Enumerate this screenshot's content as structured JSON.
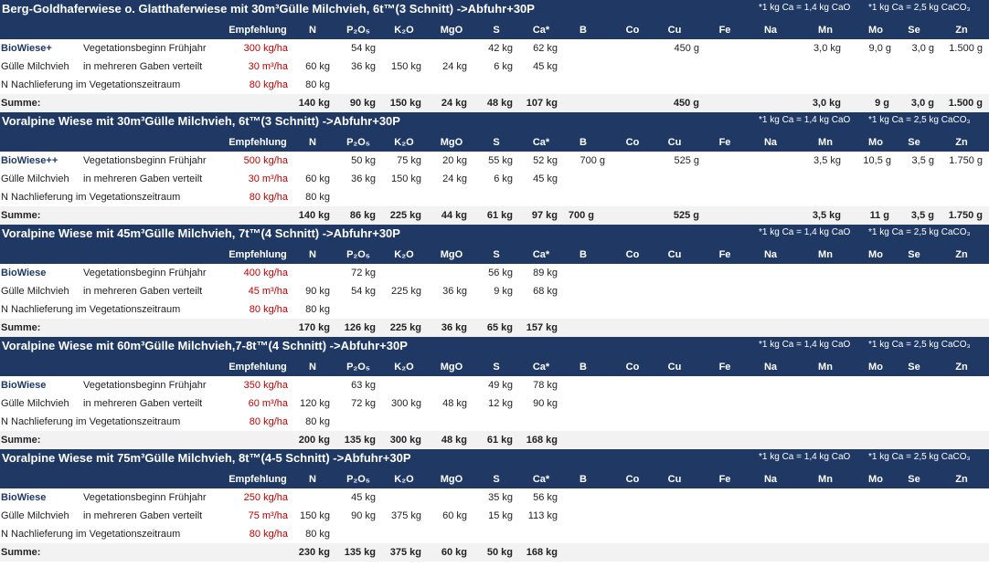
{
  "notes": [
    "*1 kg Ca = 1,4 kg CaO",
    "*1 kg Ca = 2,5 kg CaCO₃"
  ],
  "headers": [
    "Empfehlung",
    "N",
    "P₂O₅",
    "K₂O",
    "MgO",
    "S",
    "Ca*",
    "B",
    "Co",
    "Cu",
    "Fe",
    "Na",
    "Mn",
    "Mo",
    "Se",
    "Zn"
  ],
  "sum_label": "Summe:",
  "blocks": [
    {
      "title": "Berg-Goldhaferwiese o. Glatthaferwiese mit 30m³Gülle Milchvieh, 6t™(3 Schnitt) ->Abfuhr+30P",
      "rows": [
        {
          "a": "BioWiese+",
          "b": "Vegetationsbeginn Frühjahr",
          "e": "300 kg/ha",
          "N": "",
          "P": "54 kg",
          "K": "",
          "Mg": "",
          "S": "42 kg",
          "Ca": "62 kg",
          "B": "",
          "Cu": "450 g",
          "Mn": "3,0 kg",
          "Mo": "9,0 g",
          "Se": "3,0 g",
          "Zn": "1.500 g"
        },
        {
          "a": "Gülle Milchvieh",
          "b": "in mehreren Gaben verteilt",
          "e": "30 m³/ha",
          "N": "60 kg",
          "P": "36 kg",
          "K": "150 kg",
          "Mg": "24 kg",
          "S": "6 kg",
          "Ca": "45 kg"
        },
        {
          "a": "N Nachlieferung im Vegetationszeitraum",
          "b": "",
          "e": "80 kg/ha",
          "N": "80 kg"
        }
      ],
      "sum": {
        "N": "140 kg",
        "P": "90 kg",
        "K": "150 kg",
        "Mg": "24 kg",
        "S": "48 kg",
        "Ca": "107 kg",
        "B": "",
        "Cu": "450 g",
        "Mn": "3,0 kg",
        "Mo": "9 g",
        "Se": "3,0 g",
        "Zn": "1.500 g"
      }
    },
    {
      "title": "Voralpine Wiese mit 30m³Gülle Milchvieh, 6t™(3 Schnitt) ->Abfuhr+30P",
      "rows": [
        {
          "a": "BioWiese++",
          "b": "Vegetationsbeginn Frühjahr",
          "e": "500 kg/ha",
          "N": "",
          "P": "50 kg",
          "K": "75 kg",
          "Mg": "20 kg",
          "S": "55 kg",
          "Ca": "52 kg",
          "B": "700 g",
          "Cu": "525 g",
          "Mn": "3,5 kg",
          "Mo": "10,5 g",
          "Se": "3,5 g",
          "Zn": "1.750 g"
        },
        {
          "a": "Gülle Milchvieh",
          "b": "in mehreren Gaben verteilt",
          "e": "30 m³/ha",
          "N": "60 kg",
          "P": "36 kg",
          "K": "150 kg",
          "Mg": "24 kg",
          "S": "6 kg",
          "Ca": "45 kg"
        },
        {
          "a": "N Nachlieferung im Vegetationszeitraum",
          "b": "",
          "e": "80 kg/ha",
          "N": "80 kg"
        }
      ],
      "sum": {
        "N": "140 kg",
        "P": "86 kg",
        "K": "225 kg",
        "Mg": "44 kg",
        "S": "61 kg",
        "Ca": "97 kg",
        "B": "700 g",
        "Cu": "525 g",
        "Mn": "3,5 kg",
        "Mo": "11 g",
        "Se": "3,5 g",
        "Zn": "1.750 g"
      }
    },
    {
      "title": "Voralpine Wiese mit 45m³Gülle Milchvieh, 7t™(4 Schnitt) ->Abfuhr+30P",
      "rows": [
        {
          "a": "BioWiese",
          "b": "Vegetationsbeginn Frühjahr",
          "e": "400 kg/ha",
          "N": "",
          "P": "72 kg",
          "K": "",
          "Mg": "",
          "S": "56 kg",
          "Ca": "89 kg"
        },
        {
          "a": "Gülle Milchvieh",
          "b": "in mehreren Gaben verteilt",
          "e": "45 m³/ha",
          "N": "90 kg",
          "P": "54 kg",
          "K": "225 kg",
          "Mg": "36 kg",
          "S": "9 kg",
          "Ca": "68 kg"
        },
        {
          "a": "N Nachlieferung im Vegetationszeitraum",
          "b": "",
          "e": "80 kg/ha",
          "N": "80 kg"
        }
      ],
      "sum": {
        "N": "170 kg",
        "P": "126 kg",
        "K": "225 kg",
        "Mg": "36 kg",
        "S": "65 kg",
        "Ca": "157 kg"
      }
    },
    {
      "title": "Voralpine Wiese mit 60m³Gülle Milchvieh,7-8t™(4 Schnitt) ->Abfuhr+30P",
      "rows": [
        {
          "a": "BioWiese",
          "b": "Vegetationsbeginn Frühjahr",
          "e": "350 kg/ha",
          "N": "",
          "P": "63 kg",
          "K": "",
          "Mg": "",
          "S": "49 kg",
          "Ca": "78 kg"
        },
        {
          "a": "Gülle Milchvieh",
          "b": "in mehreren Gaben verteilt",
          "e": "60 m³/ha",
          "N": "120 kg",
          "P": "72 kg",
          "K": "300 kg",
          "Mg": "48 kg",
          "S": "12 kg",
          "Ca": "90 kg"
        },
        {
          "a": "N Nachlieferung im Vegetationszeitraum",
          "b": "",
          "e": "80 kg/ha",
          "N": "80 kg"
        }
      ],
      "sum": {
        "N": "200 kg",
        "P": "135 kg",
        "K": "300 kg",
        "Mg": "48 kg",
        "S": "61 kg",
        "Ca": "168 kg"
      }
    },
    {
      "title": "Voralpine Wiese mit 75m³Gülle Milchvieh, 8t™(4-5 Schnitt) ->Abfuhr+30P",
      "rows": [
        {
          "a": "BioWiese",
          "b": "Vegetationsbeginn Frühjahr",
          "e": "250 kg/ha",
          "N": "",
          "P": "45 kg",
          "K": "",
          "Mg": "",
          "S": "35 kg",
          "Ca": "56 kg"
        },
        {
          "a": "Gülle Milchvieh",
          "b": "in mehreren Gaben verteilt",
          "e": "75 m³/ha",
          "N": "150 kg",
          "P": "90 kg",
          "K": "375 kg",
          "Mg": "60 kg",
          "S": "15 kg",
          "Ca": "113 kg"
        },
        {
          "a": "N Nachlieferung im Vegetationszeitraum",
          "b": "",
          "e": "80 kg/ha",
          "N": "80 kg"
        }
      ],
      "sum": {
        "N": "230 kg",
        "P": "135 kg",
        "K": "375 kg",
        "Mg": "60 kg",
        "S": "50 kg",
        "Ca": "168 kg"
      }
    }
  ]
}
